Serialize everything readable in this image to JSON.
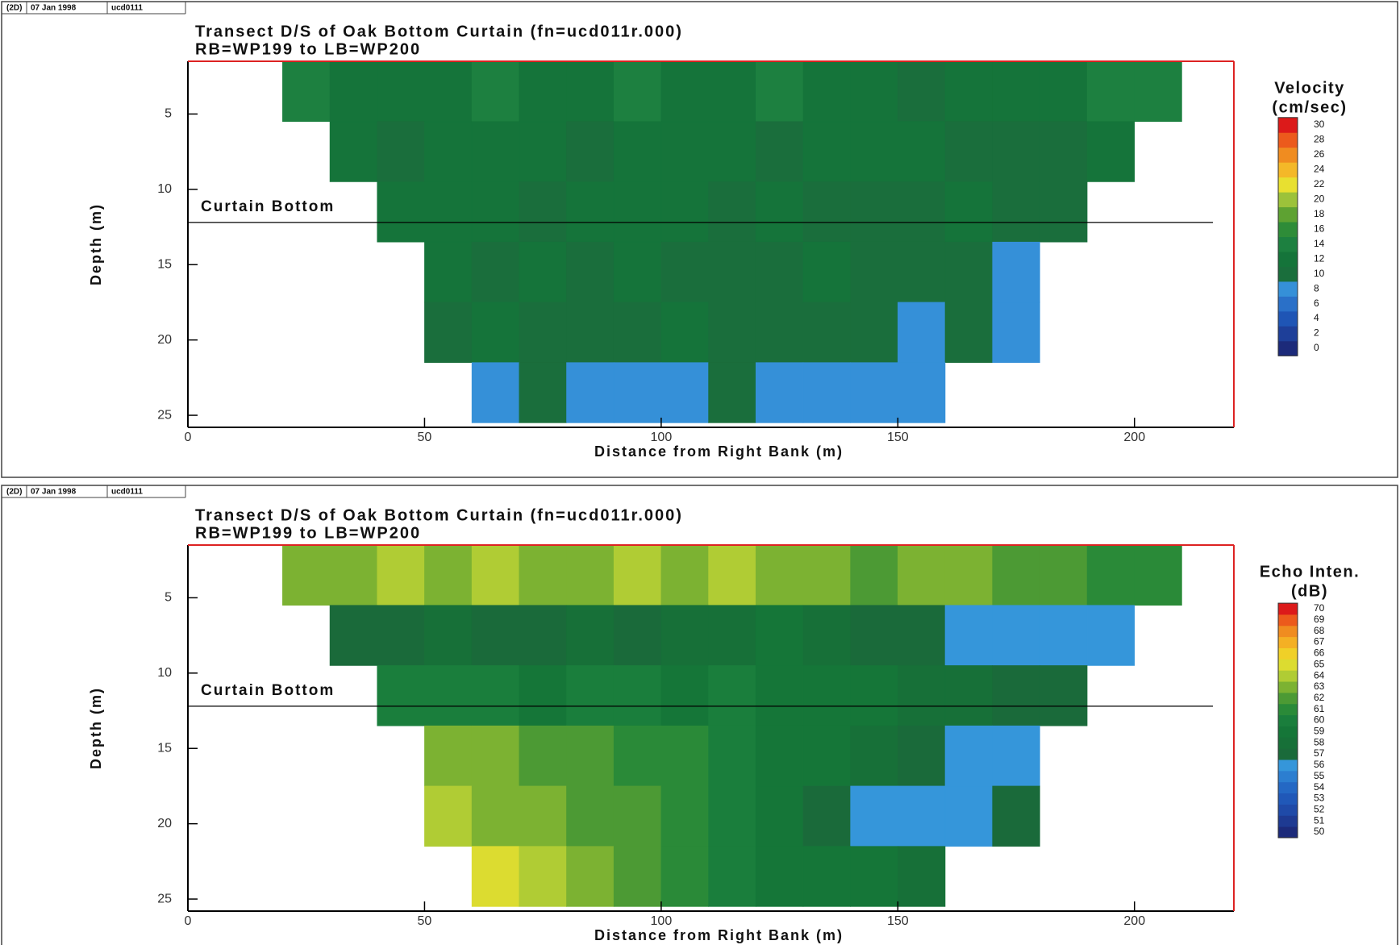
{
  "chart_data": [
    {
      "type": "contour",
      "header": [
        "(2D)",
        "07 Jan 1998",
        "ucd0111"
      ],
      "title": "Transect D/S of Oak Bottom Curtain (fn=ucd011r.000)",
      "subtitle": "RB=WP199 to LB=WP200",
      "xlabel": "Distance from Right Bank (m)",
      "ylabel": "Depth (m)",
      "xlim": [
        0,
        221
      ],
      "xticks": [
        0,
        50,
        100,
        150,
        200
      ],
      "ylim": [
        25.8,
        1.5
      ],
      "yticks": [
        5,
        10,
        15,
        20,
        25
      ],
      "annotation": {
        "text": "Curtain Bottom",
        "depth": 12.2
      },
      "colorbar_title": [
        "Velocity",
        "(cm/sec)"
      ],
      "colorbar_ticks": [
        0,
        2,
        4,
        6,
        8,
        10,
        12,
        14,
        16,
        18,
        20,
        22,
        24,
        26,
        28,
        30
      ],
      "colorbar_colors": [
        "#1c2a7a",
        "#1e3f99",
        "#1f55b5",
        "#2a70c8",
        "#3590d8",
        "#1a6e3c",
        "#15743a",
        "#1d8040",
        "#2e8c38",
        "#5ea232",
        "#9cc23a",
        "#e8e030",
        "#f4b828",
        "#f08c20",
        "#ec5a1c",
        "#dc1a1a"
      ],
      "x": [
        5,
        15,
        25,
        35,
        45,
        55,
        65,
        75,
        85,
        95,
        105,
        115,
        125,
        135,
        145,
        155,
        165,
        175,
        185,
        195,
        205,
        215
      ],
      "depth": [
        3.5,
        7.5,
        11.5,
        15.5,
        19.5,
        23.5
      ],
      "z": [
        [
          null,
          null,
          14,
          13,
          12,
          13,
          14,
          12,
          13,
          14,
          12,
          13,
          14,
          13,
          12,
          11,
          12,
          13,
          12,
          14,
          15,
          null
        ],
        [
          null,
          null,
          null,
          12,
          11,
          12,
          13,
          12,
          11,
          12,
          13,
          12,
          11,
          12,
          13,
          12,
          11,
          10,
          11,
          12,
          null,
          null
        ],
        [
          null,
          null,
          null,
          null,
          12,
          13,
          12,
          11,
          12,
          13,
          12,
          11,
          12,
          11,
          10,
          11,
          12,
          11,
          10,
          null,
          null,
          null
        ],
        [
          null,
          null,
          null,
          null,
          null,
          12,
          11,
          12,
          11,
          12,
          11,
          10,
          11,
          12,
          10,
          11,
          10,
          9,
          null,
          null,
          null,
          null
        ],
        [
          null,
          null,
          null,
          null,
          null,
          11,
          12,
          11,
          10,
          11,
          12,
          11,
          10,
          11,
          10,
          9,
          10,
          9,
          null,
          null,
          null,
          null
        ],
        [
          null,
          null,
          null,
          null,
          null,
          null,
          9,
          10,
          9,
          8,
          9,
          10,
          9,
          8,
          9,
          8,
          null,
          null,
          null,
          null,
          null,
          null
        ]
      ]
    },
    {
      "type": "contour",
      "header": [
        "(2D)",
        "07 Jan 1998",
        "ucd0111"
      ],
      "title": "Transect D/S of Oak Bottom Curtain (fn=ucd011r.000)",
      "subtitle": "RB=WP199 to LB=WP200",
      "xlabel": "Distance from Right Bank (m)",
      "ylabel": "Depth (m)",
      "xlim": [
        0,
        221
      ],
      "xticks": [
        0,
        50,
        100,
        150,
        200
      ],
      "ylim": [
        25.8,
        1.5
      ],
      "yticks": [
        5,
        10,
        15,
        20,
        25
      ],
      "annotation": {
        "text": "Curtain Bottom",
        "depth": 12.2
      },
      "colorbar_title": [
        "Echo Inten.",
        "(dB)"
      ],
      "colorbar_ticks": [
        50,
        51,
        52,
        53,
        54,
        55,
        56,
        57,
        58,
        59,
        60,
        61,
        62,
        63,
        64,
        65,
        66,
        67,
        68,
        69,
        70
      ],
      "colorbar_colors": [
        "#1c2a7a",
        "#1e3a92",
        "#1f4aa8",
        "#2058b8",
        "#2468c4",
        "#2c7ed0",
        "#3596da",
        "#1a6a3a",
        "#177038",
        "#157638",
        "#1a7e3c",
        "#2a8a38",
        "#4c9a34",
        "#7cb232",
        "#b0cc34",
        "#dcdc30",
        "#f0d028",
        "#f4b024",
        "#f08c20",
        "#ec5a1c",
        "#dc1a1a"
      ],
      "x": [
        5,
        15,
        25,
        35,
        45,
        55,
        65,
        75,
        85,
        95,
        105,
        115,
        125,
        135,
        145,
        155,
        165,
        175,
        185,
        195,
        205,
        215
      ],
      "depth": [
        3.5,
        7.5,
        11.5,
        15.5,
        19.5,
        23.5
      ],
      "z": [
        [
          null,
          null,
          63,
          63,
          64,
          63,
          64,
          63,
          63,
          64,
          63,
          64,
          63,
          63,
          62,
          63,
          63,
          62,
          62,
          61,
          61,
          null
        ],
        [
          null,
          null,
          null,
          57,
          57,
          58,
          57,
          57,
          58,
          57,
          58,
          58,
          59,
          58,
          57,
          57,
          56,
          56,
          56,
          56,
          null,
          null
        ],
        [
          null,
          null,
          null,
          null,
          60,
          60,
          60,
          59,
          60,
          60,
          59,
          60,
          59,
          59,
          59,
          58,
          58,
          57,
          57,
          null,
          null,
          null
        ],
        [
          null,
          null,
          null,
          null,
          null,
          63,
          63,
          62,
          62,
          61,
          61,
          60,
          59,
          59,
          58,
          57,
          56,
          56,
          null,
          null,
          null,
          null
        ],
        [
          null,
          null,
          null,
          null,
          null,
          64,
          63,
          63,
          62,
          62,
          61,
          60,
          59,
          57,
          56,
          56,
          56,
          57,
          null,
          null,
          null,
          null
        ],
        [
          null,
          null,
          null,
          null,
          null,
          null,
          65,
          64,
          63,
          62,
          61,
          60,
          59,
          59,
          59,
          58,
          null,
          null,
          null,
          null,
          null,
          null
        ]
      ]
    }
  ]
}
